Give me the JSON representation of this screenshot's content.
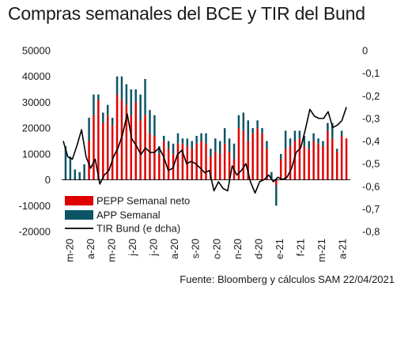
{
  "title": "Compras semanales del BCE y TIR del Bund",
  "source": "Fuente: Bloomberg y cálculos SAM 22/04/2021",
  "colors": {
    "pepp": "#e00000",
    "app": "#0b5566",
    "bund": "#000000"
  },
  "chart_data": {
    "type": "bar",
    "x_tick_labels": [
      "m-20",
      "a-20",
      "m-20",
      "j-20",
      "j-20",
      "a-20",
      "s-20",
      "o-20",
      "n-20",
      "d-20",
      "e-21",
      "f-21",
      "m-21",
      "a-21"
    ],
    "y_left": {
      "min": -20000,
      "max": 50000,
      "ticks": [
        -20000,
        -10000,
        0,
        10000,
        20000,
        30000,
        40000,
        50000
      ]
    },
    "y_right": {
      "min": -0.8,
      "max": 0,
      "ticks": [
        "0",
        "-0,1",
        "-0,2",
        "-0,3",
        "-0,4",
        "-0,5",
        "-0,6",
        "-0,7",
        "-0,8"
      ]
    },
    "legend": [
      "PEPP Semanal neto",
      "APP Semanal",
      "TIR Bund (e dcha)"
    ],
    "series": [
      {
        "name": "PEPP Semanal neto",
        "type": "bar",
        "values": [
          0,
          0,
          0,
          0,
          0,
          15000,
          25000,
          31000,
          22000,
          25000,
          21000,
          33000,
          31000,
          29000,
          25000,
          30000,
          23000,
          25000,
          18000,
          17000,
          10000,
          15000,
          12000,
          10000,
          14000,
          14000,
          13000,
          12000,
          14000,
          15000,
          14000,
          9000,
          11000,
          10000,
          14000,
          11000,
          8000,
          20000,
          19000,
          15000,
          18000,
          20000,
          18000,
          12000,
          0,
          -2000,
          8000,
          12000,
          13000,
          15000,
          16000,
          13000,
          12000,
          15000,
          14000,
          13000,
          19000,
          16000,
          11000,
          17000,
          16000
        ]
      },
      {
        "name": "APP Semanal",
        "type": "bar",
        "values": [
          13000,
          9000,
          4000,
          3000,
          6000,
          9000,
          8000,
          2000,
          4000,
          4000,
          3000,
          7000,
          9000,
          8000,
          10000,
          5000,
          10000,
          14000,
          9000,
          8000,
          3000,
          2000,
          3000,
          4000,
          4000,
          2000,
          3000,
          3000,
          3000,
          3000,
          4000,
          3000,
          5000,
          5000,
          6000,
          5000,
          6000,
          5000,
          7000,
          8000,
          2000,
          3000,
          2000,
          3000,
          3000,
          -8000,
          2000,
          7000,
          3000,
          4000,
          3000,
          4000,
          3000,
          3000,
          2000,
          2000,
          3000,
          6000,
          1000,
          2000,
          0
        ]
      },
      {
        "name": "TIR Bund (e dcha)",
        "type": "line",
        "values": [
          -0.4,
          -0.47,
          -0.48,
          -0.42,
          -0.35,
          -0.47,
          -0.52,
          -0.48,
          -0.59,
          -0.55,
          -0.53,
          -0.47,
          -0.43,
          -0.37,
          -0.28,
          -0.39,
          -0.42,
          -0.46,
          -0.43,
          -0.45,
          -0.45,
          -0.43,
          -0.47,
          -0.53,
          -0.52,
          -0.46,
          -0.44,
          -0.5,
          -0.49,
          -0.5,
          -0.52,
          -0.54,
          -0.53,
          -0.62,
          -0.58,
          -0.61,
          -0.62,
          -0.51,
          -0.55,
          -0.53,
          -0.5,
          -0.58,
          -0.63,
          -0.58,
          -0.57,
          -0.55,
          -0.58,
          -0.56,
          -0.57,
          -0.56,
          -0.52,
          -0.45,
          -0.43,
          -0.35,
          -0.26,
          -0.29,
          -0.3,
          -0.3,
          -0.27,
          -0.34,
          -0.33,
          -0.31,
          -0.25
        ]
      }
    ]
  }
}
